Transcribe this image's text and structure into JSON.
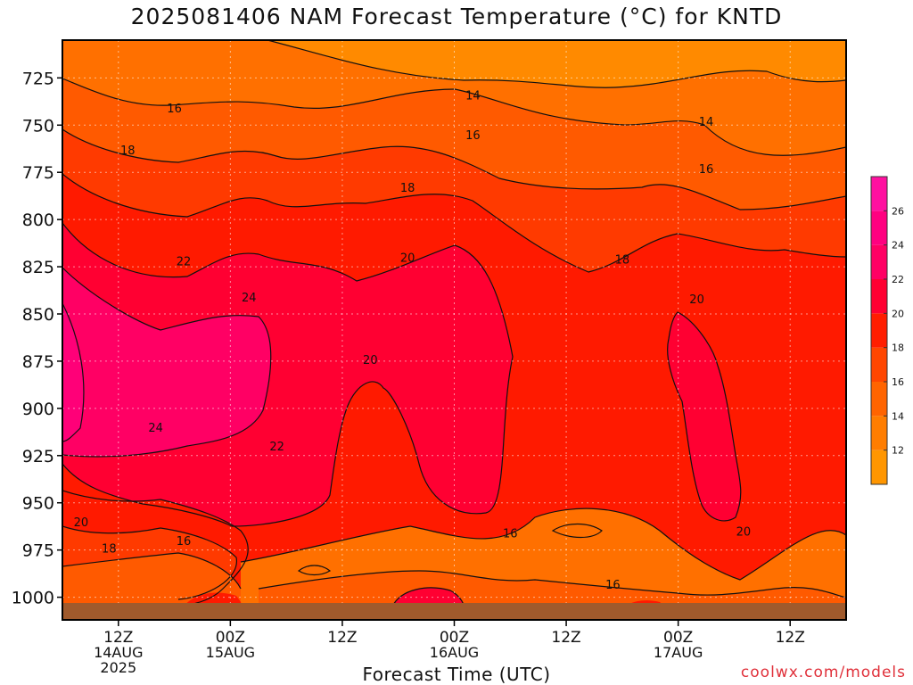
{
  "chart_data": {
    "type": "heatmap",
    "title": "2025081406 NAM Forecast Temperature (°C) for KNTD",
    "xlabel": "Forecast Time (UTC)",
    "ylabel": "",
    "y_axis": {
      "unit": "hPa",
      "ticks": [
        "725",
        "750",
        "775",
        "800",
        "825",
        "850",
        "875",
        "900",
        "925",
        "950",
        "975",
        "1000"
      ],
      "range": [
        705,
        1012
      ],
      "inverted": true
    },
    "x_axis": {
      "ticks": [
        {
          "label": "12Z",
          "date": "14AUG",
          "year": "2025"
        },
        {
          "label": "00Z",
          "date": "15AUG",
          "year": ""
        },
        {
          "label": "12Z",
          "date": "",
          "year": ""
        },
        {
          "label": "00Z",
          "date": "16AUG",
          "year": ""
        },
        {
          "label": "12Z",
          "date": "",
          "year": ""
        },
        {
          "label": "00Z",
          "date": "17AUG",
          "year": ""
        },
        {
          "label": "12Z",
          "date": "",
          "year": ""
        }
      ],
      "forecast_hours": [
        6,
        18,
        30,
        42,
        54,
        66,
        78
      ],
      "range": [
        0,
        84
      ]
    },
    "colorbar": {
      "labels": [
        "12",
        "14",
        "16",
        "18",
        "20",
        "22",
        "24",
        "26"
      ],
      "levels": [
        10,
        12,
        14,
        16,
        18,
        20,
        22,
        24,
        26,
        28
      ],
      "colors": [
        "#ff9600",
        "#ff7d00",
        "#ff6400",
        "#ff4600",
        "#ff1e00",
        "#ff0032",
        "#ff0064",
        "#ff0080",
        "#ff10a0"
      ]
    },
    "contour_labels": [
      {
        "value": "14",
        "x": 44,
        "p": 734
      },
      {
        "value": "16",
        "x": 12,
        "p": 741
      },
      {
        "value": "16",
        "x": 44,
        "p": 755
      },
      {
        "value": "14",
        "x": 69,
        "p": 748
      },
      {
        "value": "18",
        "x": 7,
        "p": 763
      },
      {
        "value": "18",
        "x": 37,
        "p": 783
      },
      {
        "value": "16",
        "x": 69,
        "p": 773
      },
      {
        "value": "22",
        "x": 13,
        "p": 822
      },
      {
        "value": "20",
        "x": 37,
        "p": 820
      },
      {
        "value": "18",
        "x": 60,
        "p": 821
      },
      {
        "value": "24",
        "x": 20,
        "p": 841
      },
      {
        "value": "20",
        "x": 68,
        "p": 842
      },
      {
        "value": "20",
        "x": 33,
        "p": 874
      },
      {
        "value": "24",
        "x": 10,
        "p": 910
      },
      {
        "value": "22",
        "x": 23,
        "p": 920
      },
      {
        "value": "20",
        "x": 2,
        "p": 960
      },
      {
        "value": "18",
        "x": 5,
        "p": 974
      },
      {
        "value": "16",
        "x": 13,
        "p": 970
      },
      {
        "value": "16",
        "x": 48,
        "p": 966
      },
      {
        "value": "20",
        "x": 73,
        "p": 965
      },
      {
        "value": "16",
        "x": 59,
        "p": 993
      }
    ]
  },
  "credit": "coolwx.com/models"
}
